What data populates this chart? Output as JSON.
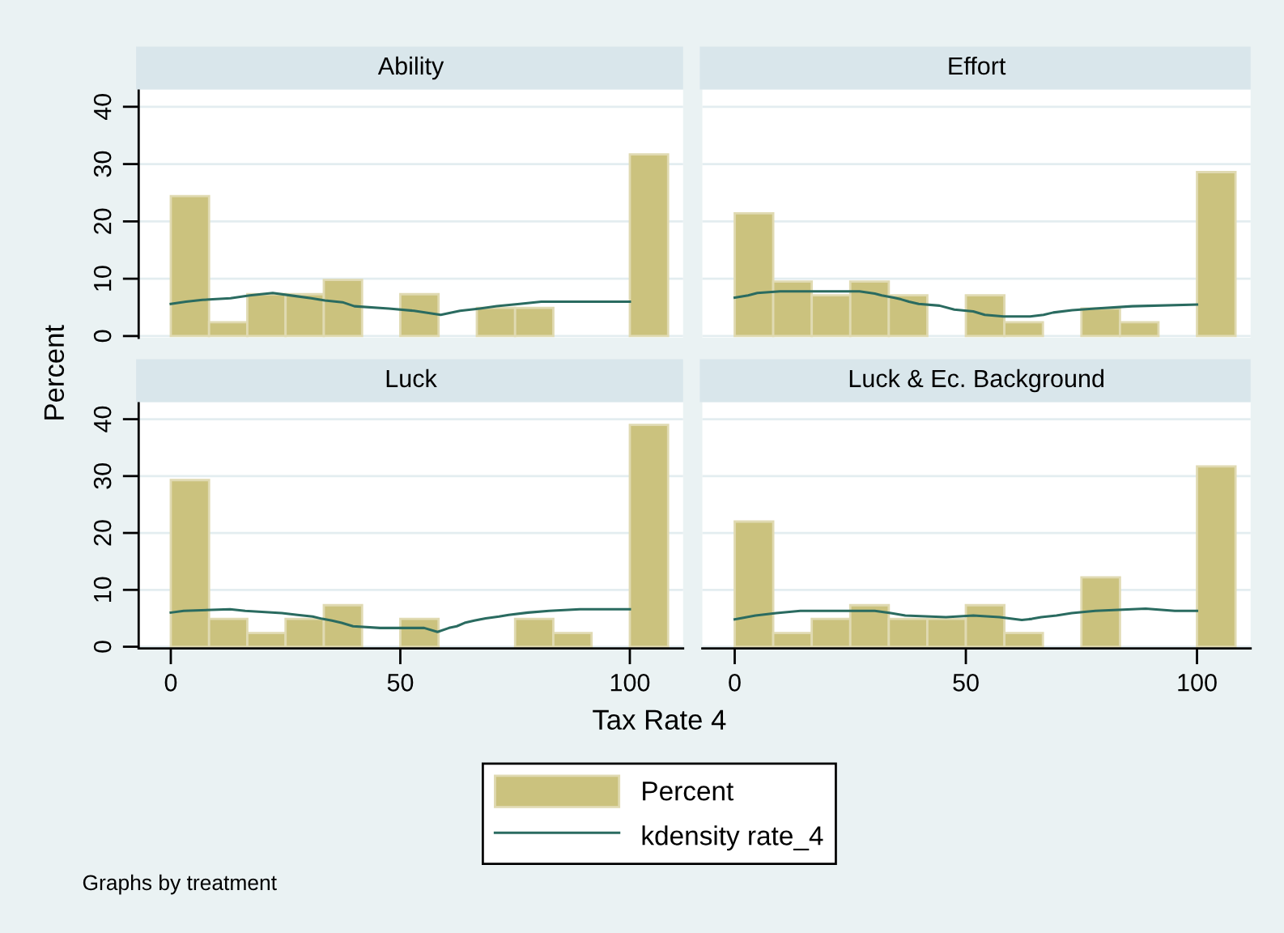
{
  "chart_data": [
    {
      "type": "histogram",
      "title": "Ability",
      "ylabel": "Percent",
      "legend": "bottom",
      "bins": [
        0,
        8.333,
        16.667,
        25,
        33.333,
        41.667,
        50,
        58.333,
        66.667,
        75,
        83.333,
        91.667,
        100,
        108.333
      ],
      "series": [
        {
          "name": "Percent",
          "type": "histogram",
          "color": "#cbc27e",
          "values": [
            24.4,
            2.4,
            7.3,
            7.3,
            9.8,
            0,
            7.3,
            0,
            4.9,
            4.9,
            0,
            0,
            31.7
          ]
        },
        {
          "name": "kdensity rate_4",
          "type": "line",
          "color": "#2a6b60",
          "x": [
            0,
            3.3,
            6.9,
            13,
            17.2,
            22.2,
            26.9,
            30.6,
            33.6,
            37.4,
            40,
            47.5,
            53,
            58.8,
            63,
            67.3,
            71,
            76,
            80.7,
            100
          ],
          "values": [
            5.6,
            6.0,
            6.3,
            6.6,
            7.1,
            7.5,
            7.0,
            6.6,
            6.2,
            5.9,
            5.2,
            4.8,
            4.4,
            3.7,
            4.4,
            4.8,
            5.2,
            5.6,
            6.0,
            6.0
          ]
        }
      ],
      "xlim": [
        -7,
        111.6
      ],
      "ylim": [
        -0.3,
        43
      ],
      "xticks": [
        0,
        50,
        100
      ],
      "yticks": [
        0,
        10,
        20,
        30,
        40
      ],
      "tick_labels": "y",
      "grid": "y"
    },
    {
      "type": "histogram",
      "title": "Effort",
      "bins": [
        0,
        8.333,
        16.667,
        25,
        33.333,
        41.667,
        50,
        58.333,
        66.667,
        75,
        83.333,
        91.667,
        100,
        108.333
      ],
      "series": [
        {
          "type": "histogram",
          "color": "#cbc27e",
          "values": [
            21.4,
            9.5,
            7.1,
            9.5,
            7.1,
            0,
            7.1,
            2.4,
            0,
            4.8,
            2.4,
            0,
            28.6
          ]
        },
        {
          "type": "line",
          "color": "#2a6b60",
          "x": [
            0,
            2.9,
            4.9,
            9.8,
            27,
            30.3,
            31.8,
            34.4,
            36,
            37.7,
            39.8,
            44.3,
            47.5,
            51.6,
            54.1,
            58.2,
            63.9,
            66.8,
            68.9,
            73,
            77.9,
            86,
            100
          ],
          "values": [
            6.7,
            7.1,
            7.5,
            7.8,
            7.8,
            7.4,
            7.1,
            6.7,
            6.4,
            6.0,
            5.6,
            5.3,
            4.6,
            4.3,
            3.7,
            3.4,
            3.4,
            3.7,
            4.1,
            4.5,
            4.8,
            5.2,
            5.5
          ]
        }
      ],
      "xlim": [
        -7,
        111.6
      ],
      "ylim": [
        -0.3,
        43
      ],
      "xticks": [
        0,
        50,
        100
      ],
      "yticks": [
        0,
        10,
        20,
        30,
        40
      ],
      "tick_labels": false,
      "grid": "y"
    },
    {
      "type": "histogram",
      "title": "Luck",
      "bins": [
        0,
        8.333,
        16.667,
        25,
        33.333,
        41.667,
        50,
        58.333,
        66.667,
        75,
        83.333,
        91.667,
        100,
        108.333
      ],
      "series": [
        {
          "type": "histogram",
          "color": "#cbc27e",
          "values": [
            29.3,
            4.9,
            2.4,
            4.9,
            7.3,
            0,
            4.9,
            0,
            0,
            4.9,
            2.4,
            0,
            39.0
          ]
        },
        {
          "type": "line",
          "color": "#2a6b60",
          "x": [
            0,
            2.8,
            12.9,
            16.2,
            24.2,
            27.6,
            30.9,
            33,
            35.1,
            37.2,
            39.7,
            45.6,
            55.2,
            58.1,
            60.6,
            62.3,
            64,
            66.1,
            68.6,
            71.5,
            73.6,
            77.8,
            82.4,
            89.1,
            100
          ],
          "values": [
            6.0,
            6.3,
            6.6,
            6.3,
            5.9,
            5.6,
            5.3,
            4.9,
            4.6,
            4.2,
            3.6,
            3.3,
            3.3,
            2.6,
            3.3,
            3.6,
            4.2,
            4.6,
            5.0,
            5.3,
            5.6,
            6.0,
            6.3,
            6.6,
            6.6
          ]
        }
      ],
      "xlim": [
        -7,
        111.6
      ],
      "ylim": [
        -0.3,
        43
      ],
      "xticks": [
        0,
        50,
        100
      ],
      "yticks": [
        0,
        10,
        20,
        30,
        40
      ],
      "grid": "y"
    },
    {
      "type": "histogram",
      "title": "Luck & Ec. Background",
      "xlabel": "Tax Rate 4",
      "annotations": [
        "Graphs by treatment"
      ],
      "bins": [
        0,
        8.333,
        16.667,
        25,
        33.333,
        41.667,
        50,
        58.333,
        66.667,
        75,
        83.333,
        91.667,
        100,
        108.333
      ],
      "series": [
        {
          "type": "histogram",
          "color": "#cbc27e",
          "values": [
            22.0,
            2.4,
            4.9,
            7.3,
            4.9,
            4.9,
            7.3,
            2.4,
            0,
            12.2,
            0,
            0,
            31.7
          ]
        },
        {
          "type": "line",
          "color": "#2a6b60",
          "x": [
            0,
            1.9,
            4.5,
            9,
            14.2,
            30.3,
            33.8,
            36.9,
            45.7,
            51.6,
            57.3,
            62.1,
            64.3,
            66.3,
            69.6,
            72.9,
            78,
            88.9,
            95.2,
            100
          ],
          "values": [
            4.8,
            5.1,
            5.5,
            5.9,
            6.3,
            6.3,
            5.9,
            5.5,
            5.2,
            5.5,
            5.2,
            4.7,
            4.9,
            5.2,
            5.5,
            5.9,
            6.3,
            6.7,
            6.3,
            6.3
          ]
        }
      ],
      "xlim": [
        -7,
        111.6
      ],
      "ylim": [
        -0.3,
        43
      ],
      "xticks": [
        0,
        50,
        100
      ],
      "yticks": [
        0,
        10,
        20,
        30,
        40
      ],
      "tick_labels": "x",
      "grid": "y"
    }
  ]
}
